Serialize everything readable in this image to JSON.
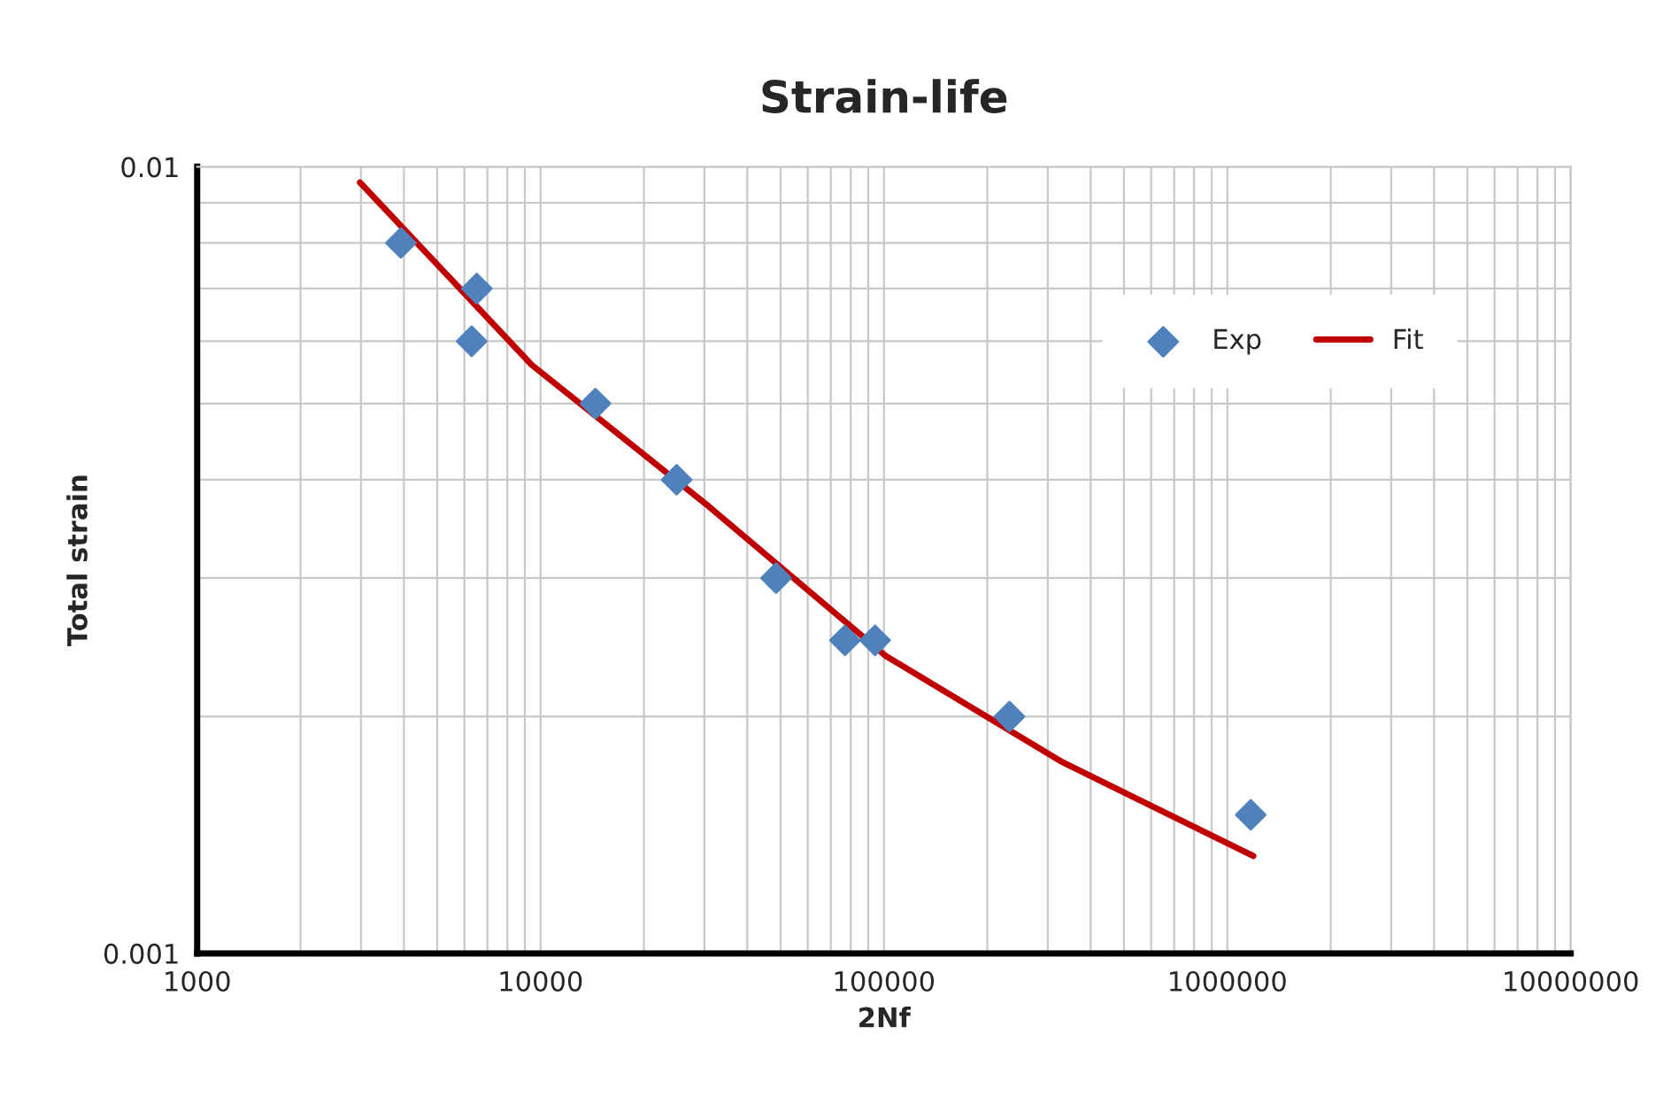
{
  "chart_data": {
    "type": "scatter",
    "title": "Strain-life",
    "xlabel": "2Nf",
    "ylabel": "Total strain",
    "log": "xy",
    "xlim": [
      1000,
      10000000
    ],
    "ylim": [
      0.001,
      0.01
    ],
    "xticks": [
      1000,
      10000,
      100000,
      1000000,
      10000000
    ],
    "yticks": [
      0.001,
      0.01
    ],
    "grid": true,
    "legend": "top right",
    "series": [
      {
        "name": "Exp",
        "marker": "diamond",
        "color": "#4f81bd",
        "x": [
          3920,
          6300,
          6520,
          14450,
          24900,
          48500,
          77000,
          94200,
          232000,
          1170000
        ],
        "values": [
          0.008,
          0.006,
          0.007,
          0.005,
          0.004,
          0.003,
          0.0025,
          0.0025,
          0.002,
          0.0015
        ]
      },
      {
        "name": "Fit",
        "type": "line",
        "marker": "none",
        "line_style": "solid",
        "color": "#c00000",
        "x": [
          2980,
          9420,
          30900,
          101000,
          331000,
          1190000
        ],
        "values": [
          0.00955,
          0.0056,
          0.0037,
          0.00239,
          0.00175,
          0.00133
        ]
      }
    ]
  }
}
